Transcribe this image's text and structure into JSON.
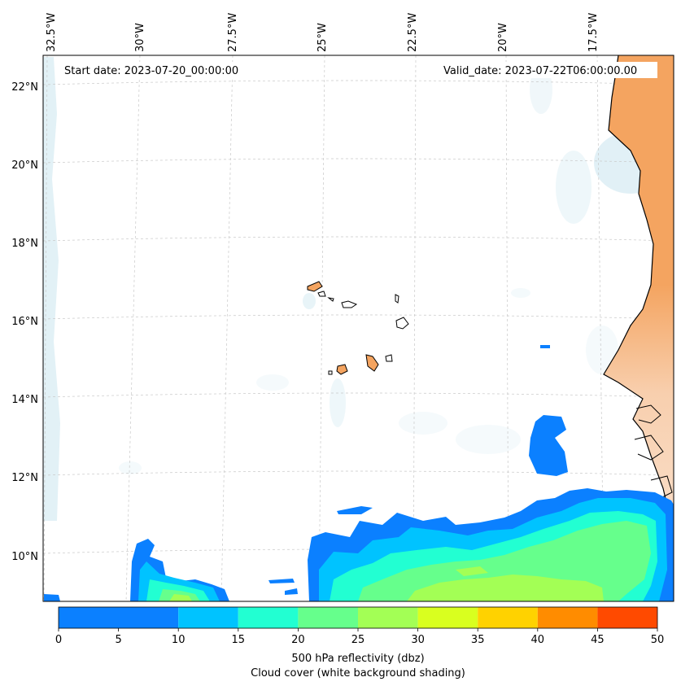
{
  "map": {
    "start_date": "Start date: 2023-07-20_00:00:00",
    "valid_date": "Valid_date: 2023-07-22T06:00:00.00",
    "lon_labels": [
      "32.5°W",
      "30°W",
      "27.5°W",
      "25°W",
      "22.5°W",
      "20°W",
      "17.5°W"
    ],
    "lat_labels": [
      "22°N",
      "20°N",
      "18°N",
      "16°N",
      "14°N",
      "12°N",
      "10°N"
    ]
  },
  "colorbar": {
    "ticks": [
      "0",
      "5",
      "10",
      "15",
      "20",
      "25",
      "30",
      "35",
      "40",
      "45",
      "50"
    ],
    "bins": [
      {
        "from": 0,
        "to": 10,
        "color": "#0b80ff"
      },
      {
        "from": 10,
        "to": 15,
        "color": "#00c3ff"
      },
      {
        "from": 15,
        "to": 20,
        "color": "#22ffd2"
      },
      {
        "from": 20,
        "to": 25,
        "color": "#66ff8c"
      },
      {
        "from": 25,
        "to": 30,
        "color": "#a3ff55"
      },
      {
        "from": 30,
        "to": 35,
        "color": "#d9ff1f"
      },
      {
        "from": 35,
        "to": 40,
        "color": "#ffd200"
      },
      {
        "from": 40,
        "to": 45,
        "color": "#ff8c00"
      },
      {
        "from": 45,
        "to": 50,
        "color": "#ff4a00"
      }
    ],
    "label_line1": "500 hPa reflectivity (dbz)",
    "label_line2": "Cloud cover (white background shading)"
  },
  "colors": {
    "land": "#f4a460",
    "coast": "#000000",
    "cloud": "#add8e6",
    "grid": "#c8c8c8"
  }
}
